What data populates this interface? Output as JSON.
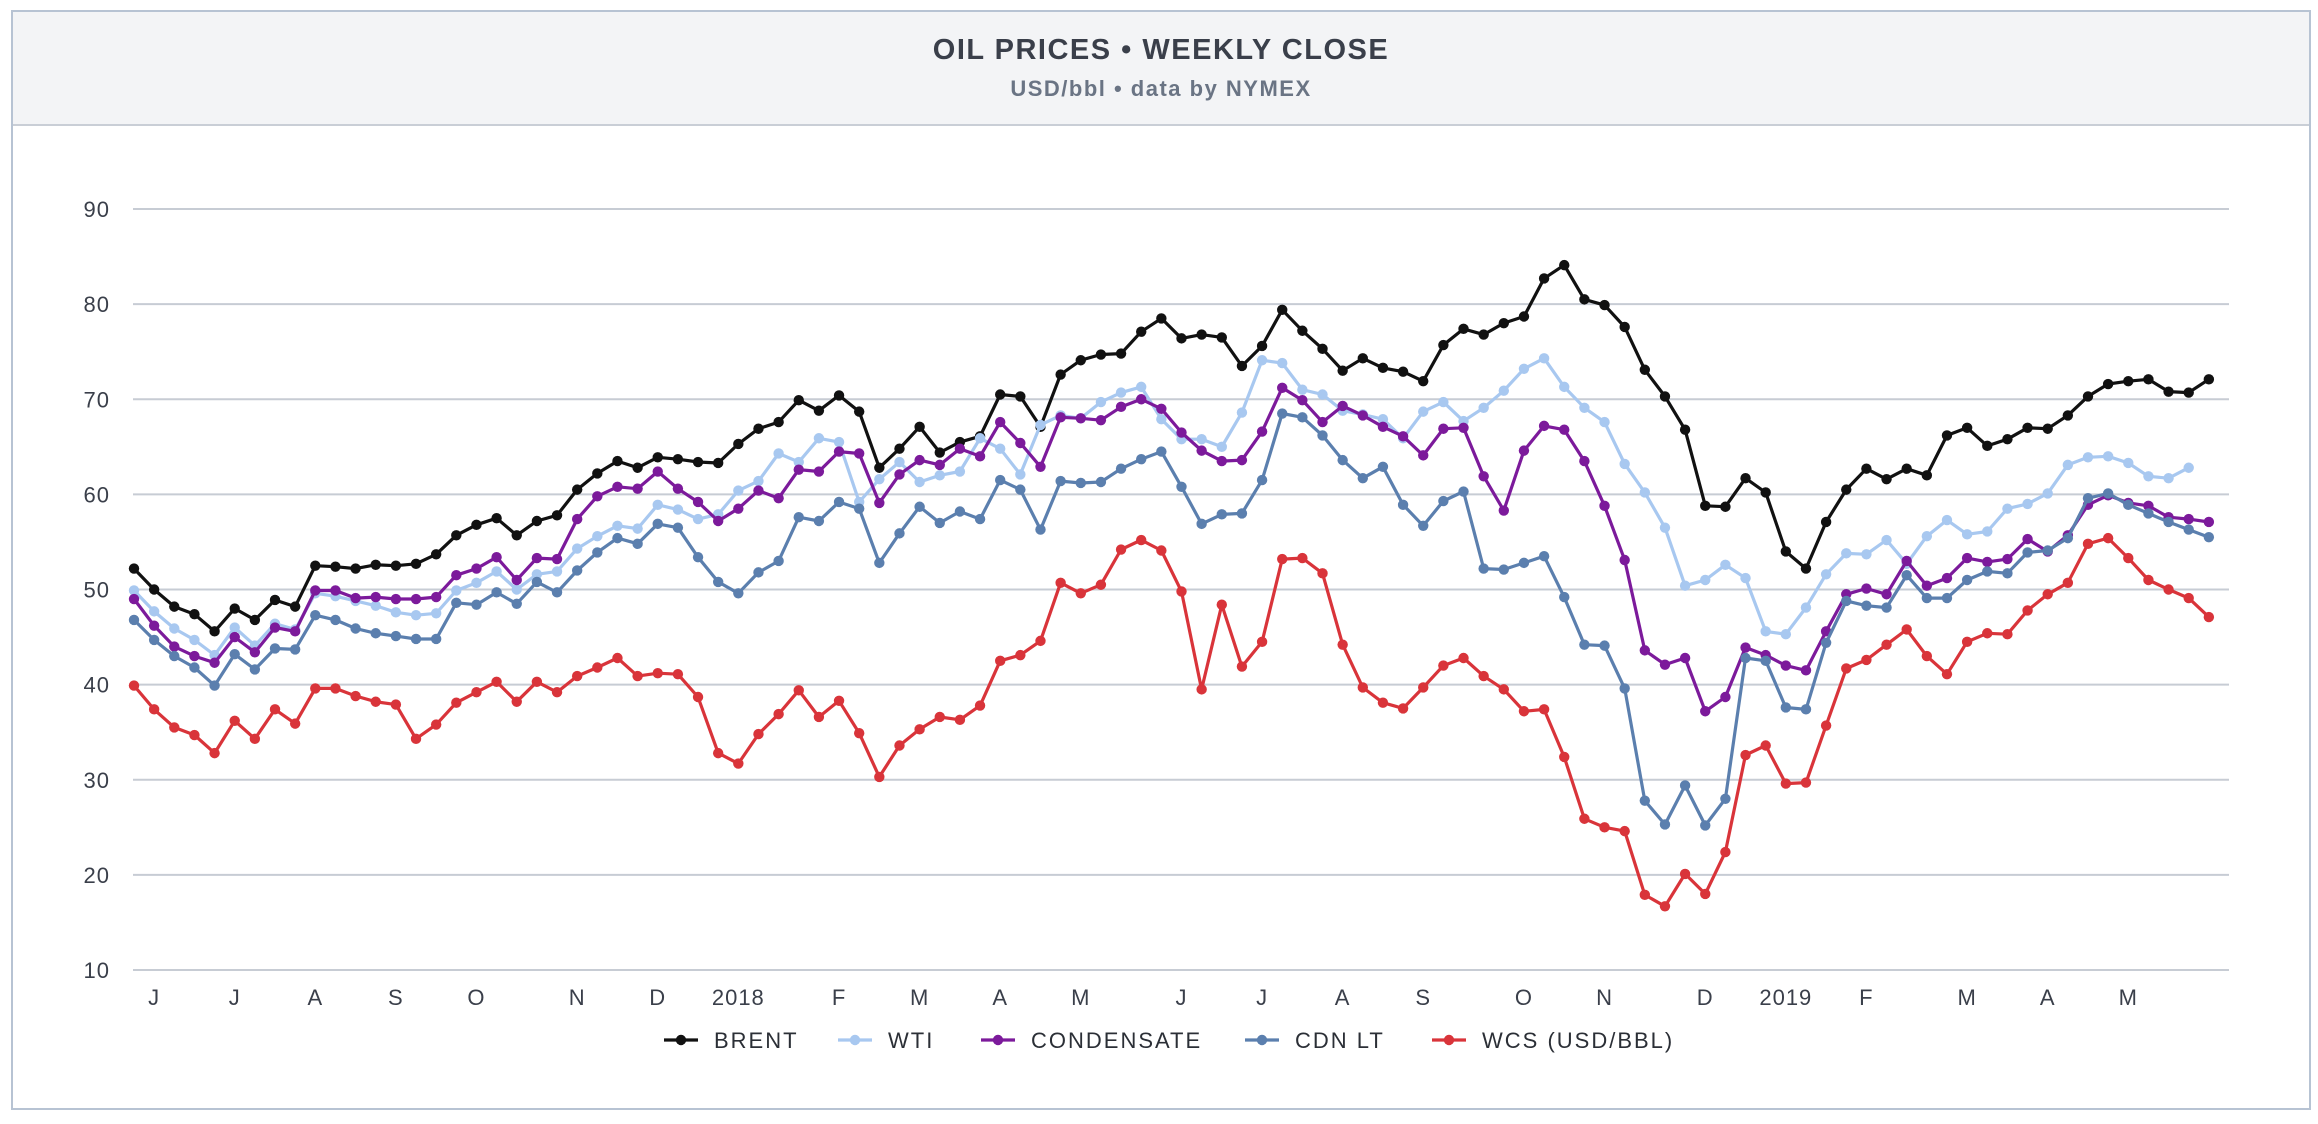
{
  "header": {
    "title": "OIL PRICES • WEEKLY CLOSE",
    "subtitle": "USD/bbl • data by NYMEX"
  },
  "chart_data": {
    "type": "line",
    "title": "OIL PRICES • WEEKLY CLOSE",
    "subtitle": "USD/bbl • data by NYMEX",
    "xlabel": "",
    "ylabel": "",
    "ylim": [
      10,
      90
    ],
    "yticks": [
      10,
      20,
      30,
      40,
      50,
      60,
      70,
      80,
      90
    ],
    "grid": "horizontal",
    "legend_position": "bottom",
    "x_tick_labels": [
      "J",
      "J",
      "A",
      "S",
      "O",
      "N",
      "D",
      "2018",
      "F",
      "M",
      "A",
      "M",
      "J",
      "J",
      "A",
      "S",
      "O",
      "N",
      "D",
      "2019",
      "F",
      "M",
      "A",
      "M"
    ],
    "x_tick_week_index": [
      1,
      5,
      9,
      13,
      17,
      22,
      26,
      30,
      35,
      39,
      43,
      47,
      52,
      56,
      60,
      64,
      69,
      73,
      78,
      82,
      86,
      91,
      95,
      99
    ],
    "x_week_range": [
      0,
      104
    ],
    "series": [
      {
        "name": "BRENT",
        "color": "#111111",
        "values": [
          52.2,
          50.0,
          48.2,
          47.4,
          45.6,
          48.0,
          46.8,
          48.9,
          48.2,
          52.5,
          52.4,
          52.2,
          52.6,
          52.5,
          52.7,
          53.7,
          55.7,
          56.8,
          57.5,
          55.7,
          57.2,
          57.8,
          60.5,
          62.2,
          63.5,
          62.8,
          63.9,
          63.7,
          63.4,
          63.3,
          65.3,
          66.9,
          67.6,
          69.9,
          68.8,
          70.4,
          68.7,
          62.8,
          64.8,
          67.1,
          64.4,
          65.5,
          66.1,
          70.5,
          70.3,
          67.1,
          72.6,
          74.1,
          74.7,
          74.8,
          77.1,
          78.5,
          76.4,
          76.8,
          76.5,
          73.5,
          75.6,
          79.4,
          77.2,
          75.3,
          73.0,
          74.3,
          73.3,
          72.9,
          71.9,
          75.7,
          77.4,
          76.8,
          78.0,
          78.7,
          82.7,
          84.1,
          80.5,
          79.9,
          77.6,
          73.1,
          70.3,
          66.8,
          58.8,
          58.7,
          61.7,
          60.2,
          54.0,
          52.2,
          57.1,
          60.5,
          62.7,
          61.6,
          62.7,
          62.0,
          66.2,
          67.0,
          65.1,
          65.8,
          67.0,
          66.9,
          68.3,
          70.3,
          71.6,
          71.9,
          72.1,
          70.8,
          70.7,
          72.1
        ]
      },
      {
        "name": "WTI",
        "color": "#a8c8f0",
        "values": [
          49.9,
          47.7,
          45.9,
          44.7,
          43.1,
          46.0,
          44.1,
          46.4,
          45.8,
          49.6,
          49.3,
          48.8,
          48.3,
          47.6,
          47.3,
          47.5,
          49.9,
          50.7,
          51.9,
          50.0,
          51.6,
          51.9,
          54.3,
          55.6,
          56.7,
          56.4,
          58.9,
          58.4,
          57.4,
          57.9,
          60.4,
          61.4,
          64.3,
          63.4,
          65.9,
          65.5,
          59.2,
          61.6,
          63.4,
          61.3,
          62.0,
          62.4,
          65.9,
          64.8,
          62.1,
          67.3,
          68.3,
          68.0,
          69.7,
          70.7,
          71.3,
          67.9,
          65.8,
          65.8,
          65.0,
          68.6,
          74.1,
          73.8,
          71.0,
          70.5,
          68.8,
          68.4,
          67.9,
          65.9,
          68.7,
          69.7,
          67.7,
          69.1,
          70.9,
          73.2,
          74.3,
          71.3,
          69.1,
          67.6,
          63.2,
          60.2,
          56.5,
          50.4,
          51.0,
          52.6,
          51.2,
          45.6,
          45.3,
          48.1,
          51.6,
          53.8,
          53.7,
          55.2,
          52.7,
          55.6,
          57.3,
          55.8,
          56.1,
          58.5,
          59.0,
          60.1,
          63.1,
          63.9,
          64.0,
          63.3,
          61.9,
          61.7,
          62.8
        ]
      },
      {
        "name": "CONDENSATE",
        "color": "#7c1a9b",
        "values": [
          49.0,
          46.2,
          44.0,
          43.0,
          42.3,
          45.0,
          43.4,
          46.0,
          45.6,
          49.9,
          49.9,
          49.1,
          49.2,
          49.0,
          49.0,
          49.2,
          51.5,
          52.2,
          53.4,
          51.0,
          53.3,
          53.2,
          57.4,
          59.8,
          60.8,
          60.6,
          62.4,
          60.6,
          59.2,
          57.2,
          58.5,
          60.4,
          59.6,
          62.6,
          62.4,
          64.5,
          64.3,
          59.1,
          62.1,
          63.6,
          63.1,
          64.8,
          64.0,
          67.6,
          65.4,
          62.9,
          68.1,
          68.0,
          67.8,
          69.2,
          70.0,
          69.0,
          66.5,
          64.6,
          63.5,
          63.6,
          66.6,
          71.2,
          69.9,
          67.6,
          69.3,
          68.3,
          67.1,
          66.1,
          64.1,
          66.9,
          67.0,
          61.9,
          58.3,
          64.6,
          67.2,
          66.8,
          63.5,
          58.8,
          53.1,
          43.6,
          42.1,
          42.8,
          37.2,
          38.7,
          43.9,
          43.1,
          42.0,
          41.5,
          45.6,
          49.5,
          50.1,
          49.5,
          53.0,
          50.4,
          51.2,
          53.3,
          52.9,
          53.2,
          55.3,
          54.0,
          55.7,
          58.9,
          59.9,
          59.1,
          58.8,
          57.6,
          57.4,
          57.1
        ]
      },
      {
        "name": "CDN LT",
        "color": "#5b7fae",
        "values": [
          46.8,
          44.7,
          43.0,
          41.8,
          39.9,
          43.2,
          41.6,
          43.8,
          43.7,
          47.3,
          46.8,
          45.9,
          45.4,
          45.1,
          44.8,
          44.8,
          48.6,
          48.4,
          49.7,
          48.5,
          50.8,
          49.7,
          52.0,
          53.9,
          55.4,
          54.8,
          56.9,
          56.5,
          53.4,
          50.8,
          49.6,
          51.8,
          53.0,
          57.6,
          57.2,
          59.2,
          58.5,
          52.8,
          55.9,
          58.7,
          57.0,
          58.2,
          57.4,
          61.5,
          60.5,
          56.3,
          61.4,
          61.2,
          61.3,
          62.7,
          63.7,
          64.5,
          60.8,
          56.9,
          57.9,
          58.0,
          61.5,
          68.5,
          68.1,
          66.2,
          63.6,
          61.7,
          62.9,
          58.9,
          56.7,
          59.3,
          60.3,
          52.2,
          52.1,
          52.8,
          53.5,
          49.2,
          44.2,
          44.1,
          39.6,
          27.8,
          25.3,
          29.4,
          25.2,
          28.0,
          42.8,
          42.5,
          37.6,
          37.4,
          44.4,
          48.8,
          48.3,
          48.1,
          51.5,
          49.1,
          49.1,
          51.0,
          51.9,
          51.7,
          53.9,
          54.1,
          55.4,
          59.6,
          60.1,
          58.9,
          58.0,
          57.1,
          56.3,
          55.5
        ]
      },
      {
        "name": "WCS (USD/BBL)",
        "color": "#d9343a",
        "values": [
          39.9,
          37.4,
          35.5,
          34.7,
          32.8,
          36.2,
          34.3,
          37.4,
          35.9,
          39.6,
          39.6,
          38.8,
          38.2,
          37.9,
          34.3,
          35.8,
          38.1,
          39.2,
          40.3,
          38.2,
          40.3,
          39.2,
          40.9,
          41.8,
          42.8,
          40.9,
          41.2,
          41.1,
          38.7,
          32.8,
          31.7,
          34.8,
          36.9,
          39.4,
          36.6,
          38.3,
          34.9,
          30.3,
          33.6,
          35.3,
          36.6,
          36.3,
          37.8,
          42.5,
          43.1,
          44.6,
          50.7,
          49.6,
          50.5,
          54.2,
          55.2,
          54.1,
          49.8,
          39.5,
          48.4,
          41.9,
          44.5,
          53.2,
          53.3,
          51.7,
          44.2,
          39.7,
          38.1,
          37.5,
          39.7,
          42.0,
          42.8,
          40.9,
          39.5,
          37.2,
          37.4,
          32.4,
          25.9,
          25.0,
          24.6,
          17.9,
          16.7,
          20.1,
          18.0,
          22.4,
          32.6,
          33.6,
          29.6,
          29.7,
          35.7,
          41.7,
          42.6,
          44.2,
          45.8,
          43.0,
          41.1,
          44.5,
          45.4,
          45.3,
          47.8,
          49.5,
          50.7,
          54.8,
          55.4,
          53.3,
          51.0,
          50.0,
          49.1,
          47.1
        ]
      }
    ]
  }
}
